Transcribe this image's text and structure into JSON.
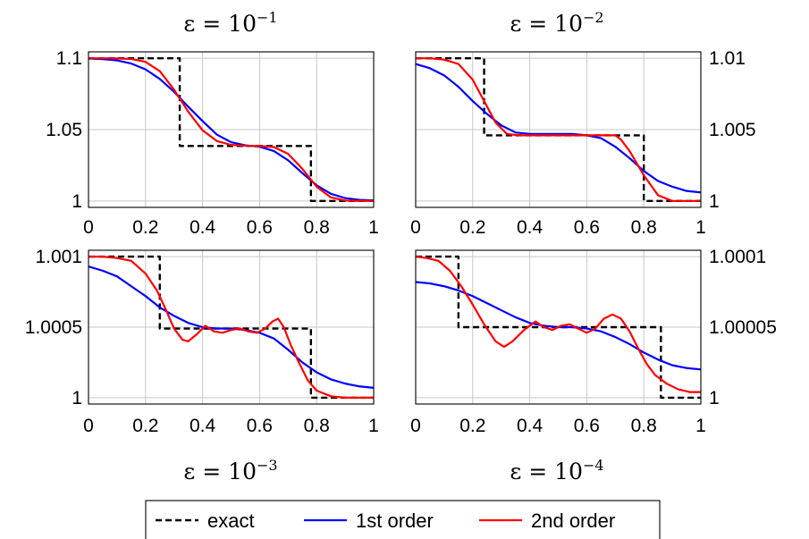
{
  "chart_data": [
    {
      "type": "line",
      "title_prefix": "ε = 10",
      "title_exp": "−1",
      "xlim": [
        0,
        1
      ],
      "ylim": [
        0.9955,
        1.1045
      ],
      "xticks": [
        "0",
        "0.2",
        "0.4",
        "0.6",
        "0.8",
        "1"
      ],
      "yticks": [
        {
          "v": 1.0,
          "label": "1"
        },
        {
          "v": 1.05,
          "label": "1.05"
        },
        {
          "v": 1.1,
          "label": "1.1"
        }
      ],
      "series": [
        {
          "name": "exact",
          "color": "#000000",
          "dash": true,
          "x": [
            0,
            0.32,
            0.32,
            0.78,
            0.78,
            1.0
          ],
          "y": [
            1.1,
            1.1,
            1.0385,
            1.0385,
            1.0,
            1.0
          ]
        },
        {
          "name": "1st order",
          "color": "#0000ff",
          "dash": false,
          "x": [
            0,
            0.05,
            0.1,
            0.15,
            0.2,
            0.25,
            0.3,
            0.35,
            0.4,
            0.45,
            0.5,
            0.55,
            0.6,
            0.65,
            0.7,
            0.75,
            0.8,
            0.85,
            0.9,
            0.95,
            1.0
          ],
          "y": [
            1.0998,
            1.0994,
            1.0985,
            1.0963,
            1.0922,
            1.0855,
            1.0765,
            1.066,
            1.056,
            1.0465,
            1.0412,
            1.039,
            1.038,
            1.035,
            1.0285,
            1.0195,
            1.011,
            1.005,
            1.002,
            1.0008,
            1.0004
          ]
        },
        {
          "name": "2nd order",
          "color": "#ff0000",
          "dash": false,
          "x": [
            0,
            0.05,
            0.1,
            0.15,
            0.2,
            0.25,
            0.3,
            0.35,
            0.4,
            0.45,
            0.5,
            0.55,
            0.6,
            0.65,
            0.7,
            0.75,
            0.8,
            0.85,
            0.9,
            0.95,
            1.0
          ],
          "y": [
            1.1,
            1.1,
            1.0999,
            1.0995,
            1.0975,
            1.091,
            1.078,
            1.0625,
            1.0495,
            1.042,
            1.0393,
            1.0387,
            1.0385,
            1.0378,
            1.033,
            1.0225,
            1.01,
            1.0025,
            1.0003,
            1.0,
            1.0
          ]
        }
      ]
    },
    {
      "type": "line",
      "title_prefix": "ε = 10",
      "title_exp": "−2",
      "xlim": [
        0,
        1
      ],
      "ylim": [
        0.99955,
        1.01045
      ],
      "xticks": [
        "0",
        "0.2",
        "0.4",
        "0.6",
        "0.8",
        "1"
      ],
      "yticks": [
        {
          "v": 1.0,
          "label": "1"
        },
        {
          "v": 1.005,
          "label": "1.005"
        },
        {
          "v": 1.01,
          "label": "1.01"
        }
      ],
      "series": [
        {
          "name": "exact",
          "color": "#000000",
          "dash": true,
          "x": [
            0,
            0.24,
            0.24,
            0.8,
            0.8,
            1.0
          ],
          "y": [
            1.01,
            1.01,
            1.0046,
            1.0046,
            1.0,
            1.0
          ]
        },
        {
          "name": "1st order",
          "color": "#0000ff",
          "dash": false,
          "x": [
            0,
            0.05,
            0.1,
            0.15,
            0.2,
            0.25,
            0.3,
            0.35,
            0.4,
            0.45,
            0.5,
            0.55,
            0.6,
            0.65,
            0.7,
            0.75,
            0.8,
            0.85,
            0.9,
            0.95,
            1.0
          ],
          "y": [
            1.0096,
            1.0093,
            1.0088,
            1.008,
            1.007,
            1.0061,
            1.0053,
            1.0048,
            1.0047,
            1.0047,
            1.0047,
            1.0047,
            1.0046,
            1.0044,
            1.0038,
            1.003,
            1.0021,
            1.0014,
            1.001,
            1.0007,
            1.0006
          ]
        },
        {
          "name": "2nd order",
          "color": "#ff0000",
          "dash": false,
          "x": [
            0,
            0.05,
            0.1,
            0.15,
            0.2,
            0.24,
            0.28,
            0.32,
            0.36,
            0.4,
            0.45,
            0.5,
            0.55,
            0.6,
            0.65,
            0.7,
            0.72,
            0.75,
            0.8,
            0.85,
            0.9,
            0.95,
            1.0
          ],
          "y": [
            1.01,
            1.01,
            1.0099,
            1.0096,
            1.0085,
            1.007,
            1.0055,
            1.0047,
            1.0046,
            1.0046,
            1.0046,
            1.0046,
            1.0046,
            1.0046,
            1.0046,
            1.0046,
            1.0043,
            1.0035,
            1.0018,
            1.0004,
            1.0,
            1.0,
            1.0
          ]
        }
      ]
    },
    {
      "type": "line",
      "title_prefix": "ε = 10",
      "title_exp": "−3",
      "xlim": [
        0,
        1
      ],
      "ylim": [
        0.999955,
        1.001045
      ],
      "xticks": [
        "0",
        "0.2",
        "0.4",
        "0.6",
        "0.8",
        "1"
      ],
      "yticks": [
        {
          "v": 1.0,
          "label": "1"
        },
        {
          "v": 1.0005,
          "label": "1.0005"
        },
        {
          "v": 1.001,
          "label": "1.001"
        }
      ],
      "series": [
        {
          "name": "exact",
          "color": "#000000",
          "dash": true,
          "x": [
            0,
            0.25,
            0.25,
            0.78,
            0.78,
            1.0
          ],
          "y": [
            1.001,
            1.001,
            1.00049,
            1.00049,
            1.0,
            1.0
          ]
        },
        {
          "name": "1st order",
          "color": "#0000ff",
          "dash": false,
          "x": [
            0,
            0.05,
            0.1,
            0.15,
            0.2,
            0.25,
            0.3,
            0.35,
            0.4,
            0.45,
            0.5,
            0.55,
            0.6,
            0.65,
            0.7,
            0.75,
            0.8,
            0.85,
            0.9,
            0.95,
            1.0
          ],
          "y": [
            1.00093,
            1.0009,
            1.00086,
            1.00079,
            1.00072,
            1.00064,
            1.00058,
            1.00053,
            1.0005,
            1.00049,
            1.00049,
            1.00048,
            1.00046,
            1.00042,
            1.00034,
            1.00025,
            1.00018,
            1.00013,
            1.0001,
            1.00008,
            1.00007
          ]
        },
        {
          "name": "2nd order",
          "color": "#ff0000",
          "dash": false,
          "x": [
            0,
            0.05,
            0.1,
            0.15,
            0.2,
            0.24,
            0.27,
            0.3,
            0.33,
            0.35,
            0.38,
            0.41,
            0.44,
            0.47,
            0.5,
            0.53,
            0.56,
            0.59,
            0.62,
            0.645,
            0.665,
            0.685,
            0.71,
            0.74,
            0.77,
            0.8,
            0.85,
            0.9,
            0.95,
            1.0
          ],
          "y": [
            1.001,
            1.001,
            1.00099,
            1.00097,
            1.00088,
            1.00076,
            1.00063,
            1.00049,
            1.00041,
            1.0004,
            1.00045,
            1.00051,
            1.00047,
            1.00046,
            1.00048,
            1.00049,
            1.00047,
            1.00046,
            1.00049,
            1.00054,
            1.00056,
            1.0005,
            1.00037,
            1.00024,
            1.00012,
            1.00005,
            1.00001,
            1.0,
            1.0,
            1.0
          ]
        }
      ]
    },
    {
      "type": "line",
      "title_prefix": "ε = 10",
      "title_exp": "−4",
      "xlim": [
        0,
        1
      ],
      "ylim": [
        0.9999955,
        1.0001045
      ],
      "xticks": [
        "0",
        "0.2",
        "0.4",
        "0.6",
        "0.8",
        "1"
      ],
      "yticks": [
        {
          "v": 1.0,
          "label": "1"
        },
        {
          "v": 1.00005,
          "label": "1.00005"
        },
        {
          "v": 1.0001,
          "label": "1.0001"
        }
      ],
      "series": [
        {
          "name": "exact",
          "color": "#000000",
          "dash": true,
          "x": [
            0,
            0.15,
            0.15,
            0.86,
            0.86,
            1.0
          ],
          "y": [
            1.0001,
            1.0001,
            1.00005,
            1.00005,
            1.0,
            1.0
          ]
        },
        {
          "name": "1st order",
          "color": "#0000ff",
          "dash": false,
          "x": [
            0,
            0.05,
            0.1,
            0.15,
            0.2,
            0.25,
            0.3,
            0.35,
            0.4,
            0.45,
            0.5,
            0.55,
            0.6,
            0.65,
            0.7,
            0.75,
            0.8,
            0.85,
            0.9,
            0.95,
            1.0
          ],
          "y": [
            1.000082,
            1.000081,
            1.000079,
            1.000076,
            1.000072,
            1.000067,
            1.000062,
            1.000057,
            1.000053,
            1.000051,
            1.00005,
            1.00005,
            1.000049,
            1.000047,
            1.000043,
            1.000038,
            1.000032,
            1.000027,
            1.000023,
            1.000021,
            1.00002
          ]
        },
        {
          "name": "2nd order",
          "color": "#ff0000",
          "dash": false,
          "x": [
            0,
            0.04,
            0.08,
            0.12,
            0.16,
            0.2,
            0.24,
            0.28,
            0.31,
            0.34,
            0.38,
            0.42,
            0.45,
            0.48,
            0.51,
            0.54,
            0.57,
            0.6,
            0.63,
            0.66,
            0.69,
            0.72,
            0.75,
            0.78,
            0.81,
            0.84,
            0.88,
            0.92,
            0.96,
            1.0
          ],
          "y": [
            1.0001,
            1.000099,
            1.000097,
            1.00009,
            1.000079,
            1.000066,
            1.000052,
            1.00004,
            1.000036,
            1.00004,
            1.000048,
            1.000054,
            1.00005,
            1.000048,
            1.000051,
            1.000052,
            1.000049,
            1.000046,
            1.000049,
            1.000056,
            1.000059,
            1.000056,
            1.000047,
            1.000035,
            1.000024,
            1.000016,
            1.00001,
            1.000006,
            1.000004,
            1.000004
          ]
        }
      ]
    }
  ],
  "legend": {
    "items": [
      {
        "label": "exact",
        "color": "#000000",
        "dash": true
      },
      {
        "label": "1st order",
        "color": "#0000ff",
        "dash": false
      },
      {
        "label": "2nd order",
        "color": "#ff0000",
        "dash": false
      }
    ]
  }
}
